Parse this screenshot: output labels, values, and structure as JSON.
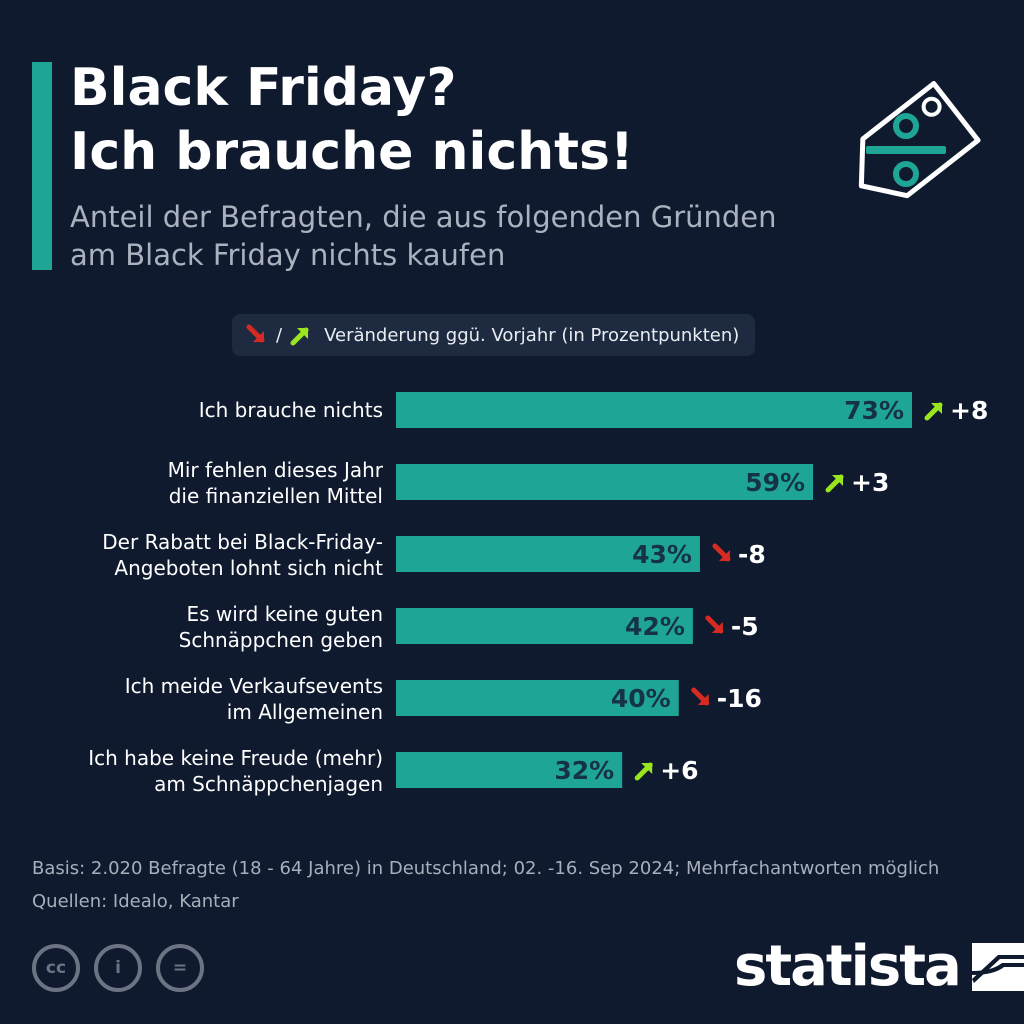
{
  "title_lines": [
    "Black Friday?",
    "Ich brauche nichts!"
  ],
  "subtitle_lines": [
    "Anteil der Befragten, die aus folgenden Gründen",
    "am Black Friday nichts kaufen"
  ],
  "legend": {
    "separator": "/",
    "text": "Veränderung ggü. Vorjahr (in Prozentpunkten)"
  },
  "colors": {
    "background": "#0f1a2e",
    "bar": "#1fa596",
    "bar_label": "#153247",
    "arrow_up": "#9ae61d",
    "arrow_down": "#d62a22"
  },
  "icons": {
    "tag": "price-tag-divide-icon",
    "up": "arrow-up-right-icon",
    "down": "arrow-down-right-icon"
  },
  "chart_data": {
    "type": "bar",
    "orientation": "horizontal",
    "xlim": [
      0,
      73
    ],
    "categories": [
      [
        "Ich brauche nichts"
      ],
      [
        "Mir fehlen dieses Jahr",
        "die finanziellen Mittel"
      ],
      [
        "Der Rabatt bei Black-Friday-",
        "Angeboten lohnt sich nicht"
      ],
      [
        "Es wird keine guten",
        "Schnäppchen geben"
      ],
      [
        "Ich meide Verkaufsevents",
        "im Allgemeinen"
      ],
      [
        "Ich habe keine Freude (mehr)",
        "am Schnäppchenjagen"
      ]
    ],
    "values": [
      73,
      59,
      43,
      42,
      40,
      32
    ],
    "value_labels": [
      "73%",
      "59%",
      "43%",
      "42%",
      "40%",
      "32%"
    ],
    "changes": [
      8,
      3,
      -8,
      -5,
      -16,
      6
    ],
    "change_labels": [
      "+8",
      "+3",
      "-8",
      "-5",
      "-16",
      "+6"
    ]
  },
  "footnote_lines": [
    "Basis: 2.020 Befragte (18 - 64 Jahre) in Deutschland; 02. -16. Sep 2024; Mehrfachantworten möglich",
    "Quellen: Idealo, Kantar"
  ],
  "license_icons": [
    "cc",
    "i",
    "="
  ],
  "brand": "statista"
}
